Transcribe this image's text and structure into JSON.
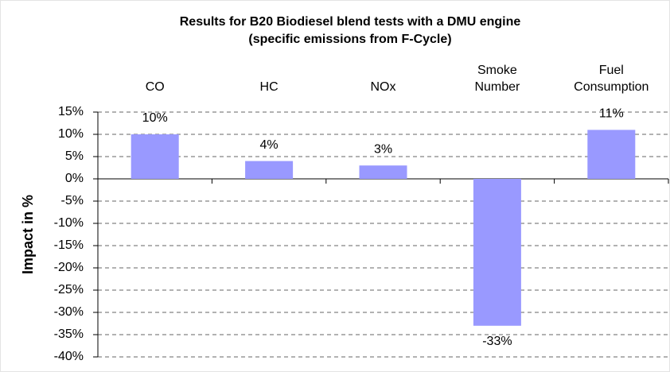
{
  "chart_data": {
    "type": "bar",
    "title": "Results for B20 Biodiesel blend tests with a DMU engine",
    "subtitle": "(specific emissions from F-Cycle)",
    "y_label": "Impact in %",
    "categories": [
      "CO",
      "HC",
      "NOx",
      "Smoke Number",
      "Fuel Consumption"
    ],
    "values": [
      10,
      4,
      3,
      -33,
      11
    ],
    "value_labels": [
      "10%",
      "4%",
      "3%",
      "-33%",
      "11%"
    ],
    "color": "#9999ff",
    "ylim": [
      -40,
      15
    ],
    "yticks": [
      {
        "value": 15,
        "label": "15%"
      },
      {
        "value": 10,
        "label": "10%"
      },
      {
        "value": 5,
        "label": "5%"
      },
      {
        "value": 0,
        "label": "0%"
      },
      {
        "value": -5,
        "label": "-5%"
      },
      {
        "value": -10,
        "label": "-10%"
      },
      {
        "value": -15,
        "label": "-15%"
      },
      {
        "value": -20,
        "label": "-20%"
      },
      {
        "value": -25,
        "label": "-25%"
      },
      {
        "value": -30,
        "label": "-30%"
      },
      {
        "value": -35,
        "label": "-35%"
      },
      {
        "value": -40,
        "label": "-40%"
      }
    ],
    "grid": true
  }
}
